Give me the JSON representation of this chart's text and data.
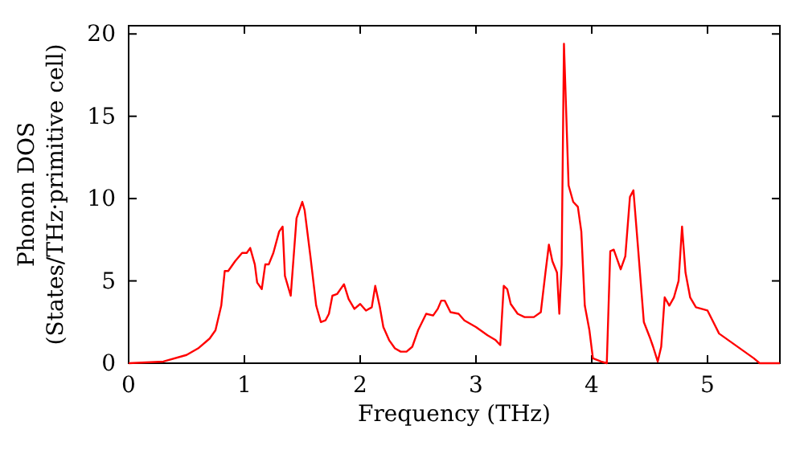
{
  "chart_data": {
    "type": "line",
    "xlabel": "Frequency (THz)",
    "ylabel": "Phonon DOS\n(States/THz·primitive cell)",
    "xlim": [
      0,
      5.625
    ],
    "ylim": [
      0,
      20.5
    ],
    "xticks": [
      0,
      1,
      2,
      3,
      4,
      5
    ],
    "yticks": [
      0,
      5,
      10,
      15,
      20
    ],
    "marker": "none",
    "line_style": "solid",
    "series": [
      {
        "color": "#ff0000",
        "x": [
          0,
          0.3,
          0.5,
          0.6,
          0.7,
          0.75,
          0.8,
          0.83,
          0.86,
          0.92,
          0.98,
          1.02,
          1.05,
          1.09,
          1.11,
          1.15,
          1.18,
          1.21,
          1.25,
          1.3,
          1.33,
          1.35,
          1.4,
          1.45,
          1.5,
          1.52,
          1.57,
          1.62,
          1.66,
          1.7,
          1.73,
          1.76,
          1.8,
          1.86,
          1.9,
          1.95,
          2.0,
          2.05,
          2.1,
          2.13,
          2.17,
          2.2,
          2.25,
          2.3,
          2.35,
          2.4,
          2.45,
          2.5,
          2.57,
          2.63,
          2.67,
          2.7,
          2.73,
          2.78,
          2.85,
          2.9,
          3.0,
          3.1,
          3.17,
          3.21,
          3.24,
          3.27,
          3.3,
          3.36,
          3.42,
          3.5,
          3.56,
          3.6,
          3.63,
          3.66,
          3.7,
          3.72,
          3.74,
          3.76,
          3.8,
          3.84,
          3.88,
          3.91,
          3.94,
          3.98,
          4.01,
          4.08,
          4.13,
          4.16,
          4.19,
          4.25,
          4.29,
          4.33,
          4.36,
          4.4,
          4.45,
          4.5,
          4.53,
          4.57,
          4.6,
          4.63,
          4.67,
          4.71,
          4.75,
          4.78,
          4.81,
          4.85,
          4.9,
          4.95,
          5.0,
          5.05,
          5.1,
          5.2,
          5.3,
          5.4,
          5.45,
          5.625
        ],
        "values": [
          0,
          0.1,
          0.5,
          0.9,
          1.5,
          2,
          3.5,
          5.6,
          5.6,
          6.2,
          6.7,
          6.7,
          7.0,
          6.0,
          4.9,
          4.5,
          6.0,
          6.0,
          6.7,
          8.0,
          8.3,
          5.3,
          4.1,
          8.8,
          9.8,
          9.3,
          6.5,
          3.5,
          2.5,
          2.6,
          3.0,
          4.1,
          4.2,
          4.8,
          3.9,
          3.3,
          3.6,
          3.2,
          3.4,
          4.7,
          3.4,
          2.2,
          1.4,
          0.9,
          0.7,
          0.7,
          1.0,
          2.0,
          3.0,
          2.9,
          3.3,
          3.8,
          3.8,
          3.1,
          3.0,
          2.6,
          2.2,
          1.7,
          1.4,
          1.1,
          4.7,
          4.5,
          3.6,
          3.0,
          2.8,
          2.8,
          3.1,
          5.5,
          7.2,
          6.2,
          5.5,
          3.0,
          6.0,
          19.4,
          10.8,
          9.8,
          9.5,
          8.0,
          3.5,
          2.0,
          0.3,
          0.1,
          0,
          6.8,
          6.9,
          5.7,
          6.5,
          10.1,
          10.5,
          7.0,
          2.5,
          1.6,
          1.0,
          0.1,
          1.0,
          4.0,
          3.5,
          4.0,
          5.0,
          8.3,
          5.5,
          4.0,
          3.4,
          3.3,
          3.2,
          2.5,
          1.8,
          1.3,
          0.8,
          0.3,
          0,
          0
        ]
      }
    ]
  }
}
